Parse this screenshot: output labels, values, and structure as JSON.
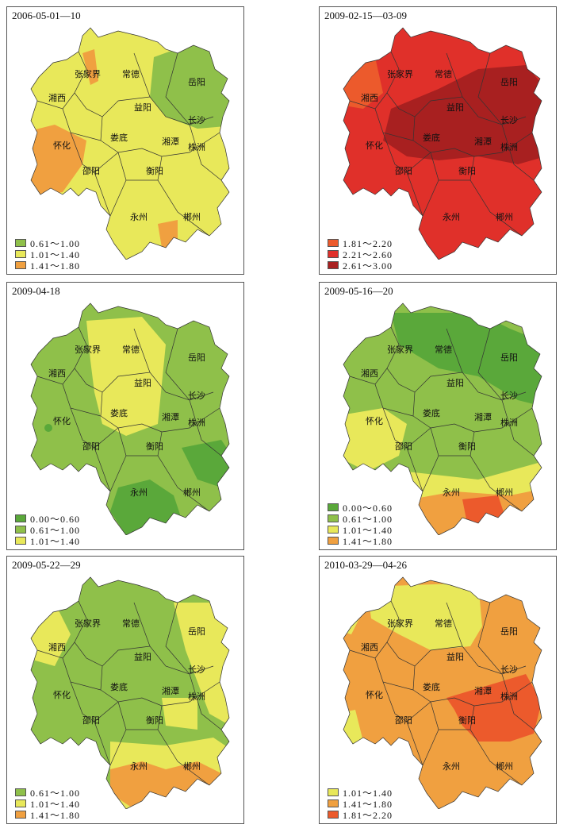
{
  "cities": {
    "zhangjiajie": "张家界",
    "changde": "常德",
    "yueyang": "岳阳",
    "xiangxi": "湘西",
    "yiyang": "益阳",
    "changsha": "长沙",
    "loudi": "娄底",
    "xiangtan": "湘潭",
    "huaihua": "怀化",
    "zhuzhou": "株洲",
    "shaoyang": "邵阳",
    "hengyang": "衡阳",
    "yongzhou": "永州",
    "chenzhou": "郴州"
  },
  "panels": [
    {
      "title": "2006-05-01—10",
      "legend": [
        {
          "label": "0.61～1.00",
          "color": "#8fc04a"
        },
        {
          "label": "1.01～1.40",
          "color": "#e8e85a"
        },
        {
          "label": "1.41～1.80",
          "color": "#f0a040"
        }
      ]
    },
    {
      "title": "2009-02-15—03-09",
      "legend": [
        {
          "label": "1.81～2.20",
          "color": "#ec5a2c"
        },
        {
          "label": "2.21～2.60",
          "color": "#e0302a"
        },
        {
          "label": "2.61～3.00",
          "color": "#a82020"
        }
      ]
    },
    {
      "title": "2009-04-18",
      "legend": [
        {
          "label": "0.00～0.60",
          "color": "#5aa83a"
        },
        {
          "label": "0.61～1.00",
          "color": "#8fc04a"
        },
        {
          "label": "1.01～1.40",
          "color": "#e8e85a"
        }
      ]
    },
    {
      "title": "2009-05-16—20",
      "legend": [
        {
          "label": "0.00～0.60",
          "color": "#5aa83a"
        },
        {
          "label": "0.61～1.00",
          "color": "#8fc04a"
        },
        {
          "label": "1.01～1.40",
          "color": "#e8e85a"
        },
        {
          "label": "1.41～1.80",
          "color": "#f0a040"
        }
      ]
    },
    {
      "title": "2009-05-22—29",
      "legend": [
        {
          "label": "0.61～1.00",
          "color": "#8fc04a"
        },
        {
          "label": "1.01～1.40",
          "color": "#e8e85a"
        },
        {
          "label": "1.41～1.80",
          "color": "#f0a040"
        }
      ]
    },
    {
      "title": "2010-03-29—04-26",
      "legend": [
        {
          "label": "1.01～1.40",
          "color": "#e8e85a"
        },
        {
          "label": "1.41～1.80",
          "color": "#f0a040"
        },
        {
          "label": "1.81～2.20",
          "color": "#ec5a2c"
        }
      ]
    }
  ]
}
